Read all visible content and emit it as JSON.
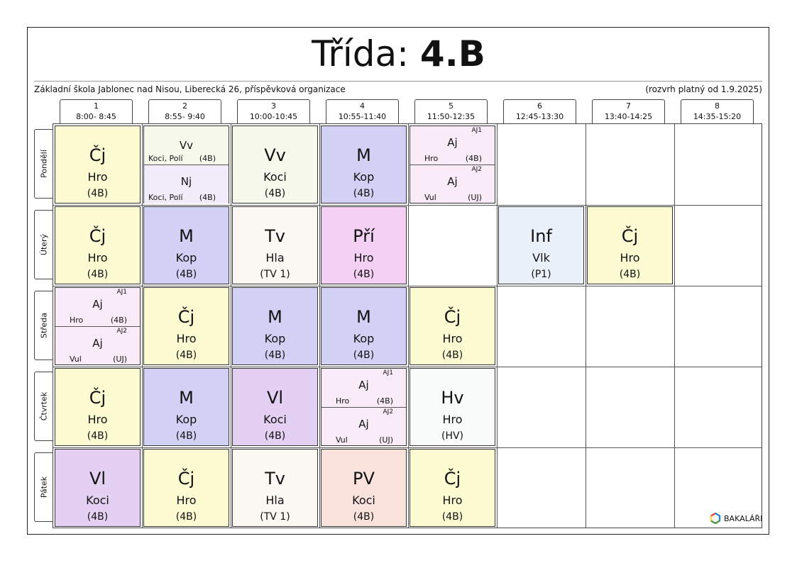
{
  "title": {
    "prefix": "Třída: ",
    "class_name": "4.B"
  },
  "school": "Základní škola Jablonec nad Nisou, Liberecká 26, příspěvková organizace",
  "validity": "(rozvrh platný od 1.9.2025)",
  "periods": [
    {
      "num": "1",
      "time": "8:00- 8:45"
    },
    {
      "num": "2",
      "time": "8:55- 9:40"
    },
    {
      "num": "3",
      "time": "10:00-10:45"
    },
    {
      "num": "4",
      "time": "10:55-11:40"
    },
    {
      "num": "5",
      "time": "11:50-12:35"
    },
    {
      "num": "6",
      "time": "12:45-13:30"
    },
    {
      "num": "7",
      "time": "13:40-14:25"
    },
    {
      "num": "8",
      "time": "14:35-15:20"
    }
  ],
  "days": [
    "Pondělí",
    "Úterý",
    "Středa",
    "Čtvrtek",
    "Pátek"
  ],
  "lessons": {
    "mon": [
      {
        "subject": "Čj",
        "teacher": "Hro",
        "room": "(4B)"
      },
      {
        "top": {
          "subject": "Vv",
          "teacher": "Koci, Polí",
          "room": "(4B)"
        },
        "bottom": {
          "subject": "Nj",
          "teacher": "Koci, Polí",
          "room": "(4B)"
        }
      },
      {
        "subject": "Vv",
        "teacher": "Koci",
        "room": "(4B)"
      },
      {
        "subject": "M",
        "teacher": "Kop",
        "room": "(4B)"
      },
      {
        "top": {
          "group": "AJ1",
          "subject": "Aj",
          "teacher": "Hro",
          "room": "(4B)"
        },
        "bottom": {
          "group": "AJ2",
          "subject": "Aj",
          "teacher": "Vul",
          "room": "(UJ)"
        }
      }
    ],
    "tue": [
      {
        "subject": "Čj",
        "teacher": "Hro",
        "room": "(4B)"
      },
      {
        "subject": "M",
        "teacher": "Kop",
        "room": "(4B)"
      },
      {
        "subject": "Tv",
        "teacher": "Hla",
        "room": "(TV 1)"
      },
      {
        "subject": "Pří",
        "teacher": "Hro",
        "room": "(4B)"
      },
      {
        "subject": "Inf",
        "teacher": "Vlk",
        "room": "(P1)"
      },
      {
        "subject": "Čj",
        "teacher": "Hro",
        "room": "(4B)"
      }
    ],
    "wed": [
      {
        "top": {
          "group": "AJ1",
          "subject": "Aj",
          "teacher": "Hro",
          "room": "(4B)"
        },
        "bottom": {
          "group": "AJ2",
          "subject": "Aj",
          "teacher": "Vul",
          "room": "(UJ)"
        }
      },
      {
        "subject": "Čj",
        "teacher": "Hro",
        "room": "(4B)"
      },
      {
        "subject": "M",
        "teacher": "Kop",
        "room": "(4B)"
      },
      {
        "subject": "M",
        "teacher": "Kop",
        "room": "(4B)"
      },
      {
        "subject": "Čj",
        "teacher": "Hro",
        "room": "(4B)"
      }
    ],
    "thu": [
      {
        "subject": "Čj",
        "teacher": "Hro",
        "room": "(4B)"
      },
      {
        "subject": "M",
        "teacher": "Kop",
        "room": "(4B)"
      },
      {
        "subject": "Vl",
        "teacher": "Koci",
        "room": "(4B)"
      },
      {
        "top": {
          "group": "AJ1",
          "subject": "Aj",
          "teacher": "Hro",
          "room": "(4B)"
        },
        "bottom": {
          "group": "AJ2",
          "subject": "Aj",
          "teacher": "Vul",
          "room": "(UJ)"
        }
      },
      {
        "subject": "Hv",
        "teacher": "Hro",
        "room": "(HV)"
      }
    ],
    "fri": [
      {
        "subject": "Vl",
        "teacher": "Koci",
        "room": "(4B)"
      },
      {
        "subject": "Čj",
        "teacher": "Hro",
        "room": "(4B)"
      },
      {
        "subject": "Tv",
        "teacher": "Hla",
        "room": "(TV 1)"
      },
      {
        "subject": "PV",
        "teacher": "Koci",
        "room": "(4B)"
      },
      {
        "subject": "Čj",
        "teacher": "Hro",
        "room": "(4B)"
      }
    ]
  },
  "colors": {
    "cj": "#fdfbd2",
    "m": "#d2d0f4",
    "vv": "#f7f9ec",
    "nj": "#f1ecfa",
    "aj": "#f9ecf8",
    "tv": "#fbf8f3",
    "pri": "#f3d0f4",
    "inf": "#eaf1fa",
    "vl": "#e3d0f2",
    "hv": "#f9fbfb",
    "pv": "#f9e2dc"
  },
  "logo": {
    "icon": "bakalari-logo-icon",
    "text": "BAKALÁŘI"
  }
}
